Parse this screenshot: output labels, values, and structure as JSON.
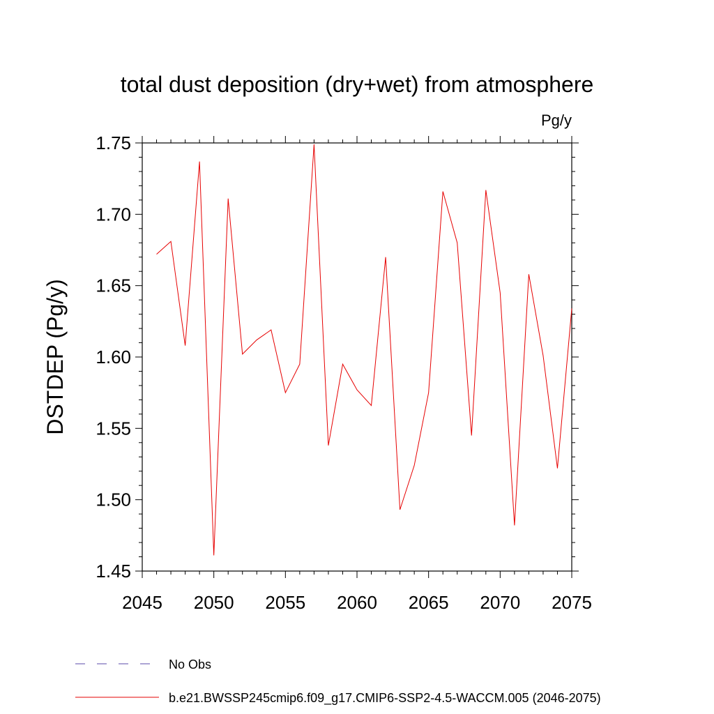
{
  "chart_data": {
    "type": "line",
    "title": "total dust deposition (dry+wet) from atmosphere",
    "units": "Pg/y",
    "xlabel": "",
    "ylabel": "DSTDEP  (Pg/y)",
    "xlim": [
      2045,
      2075
    ],
    "ylim": [
      1.45,
      1.75
    ],
    "x_ticks": [
      2045,
      2050,
      2055,
      2060,
      2065,
      2070,
      2075
    ],
    "x_tick_labels": [
      "2045",
      "2050",
      "2055",
      "2060",
      "2065",
      "2070",
      "2075"
    ],
    "y_ticks": [
      1.45,
      1.5,
      1.55,
      1.6,
      1.65,
      1.7,
      1.75
    ],
    "y_tick_labels": [
      "1.45",
      "1.50",
      "1.55",
      "1.60",
      "1.65",
      "1.70",
      "1.75"
    ],
    "x_minor_step": 1,
    "y_minor_step": 0.01,
    "series": [
      {
        "name": "b.e21.BWSSP245cmip6.f09_g17.CMIP6-SSP2-4.5-WACCM.005 (2046-2075)",
        "color": "#e60000",
        "style": "solid",
        "x": [
          2046,
          2047,
          2048,
          2049,
          2050,
          2051,
          2052,
          2053,
          2054,
          2055,
          2056,
          2057,
          2058,
          2059,
          2060,
          2061,
          2062,
          2063,
          2064,
          2065,
          2066,
          2067,
          2068,
          2069,
          2070,
          2071,
          2072,
          2073,
          2074,
          2075
        ],
        "values": [
          1.672,
          1.681,
          1.608,
          1.737,
          1.461,
          1.711,
          1.602,
          1.612,
          1.619,
          1.575,
          1.595,
          1.749,
          1.538,
          1.595,
          1.577,
          1.566,
          1.67,
          1.493,
          1.524,
          1.575,
          1.716,
          1.68,
          1.545,
          1.717,
          1.645,
          1.482,
          1.658,
          1.601,
          1.522,
          1.634
        ]
      }
    ],
    "legend": [
      {
        "label": "No Obs",
        "color": "#5a4aa8",
        "style": "dashed"
      },
      {
        "label": "b.e21.BWSSP245cmip6.f09_g17.CMIP6-SSP2-4.5-WACCM.005 (2046-2075)",
        "color": "#e60000",
        "style": "solid"
      }
    ]
  }
}
